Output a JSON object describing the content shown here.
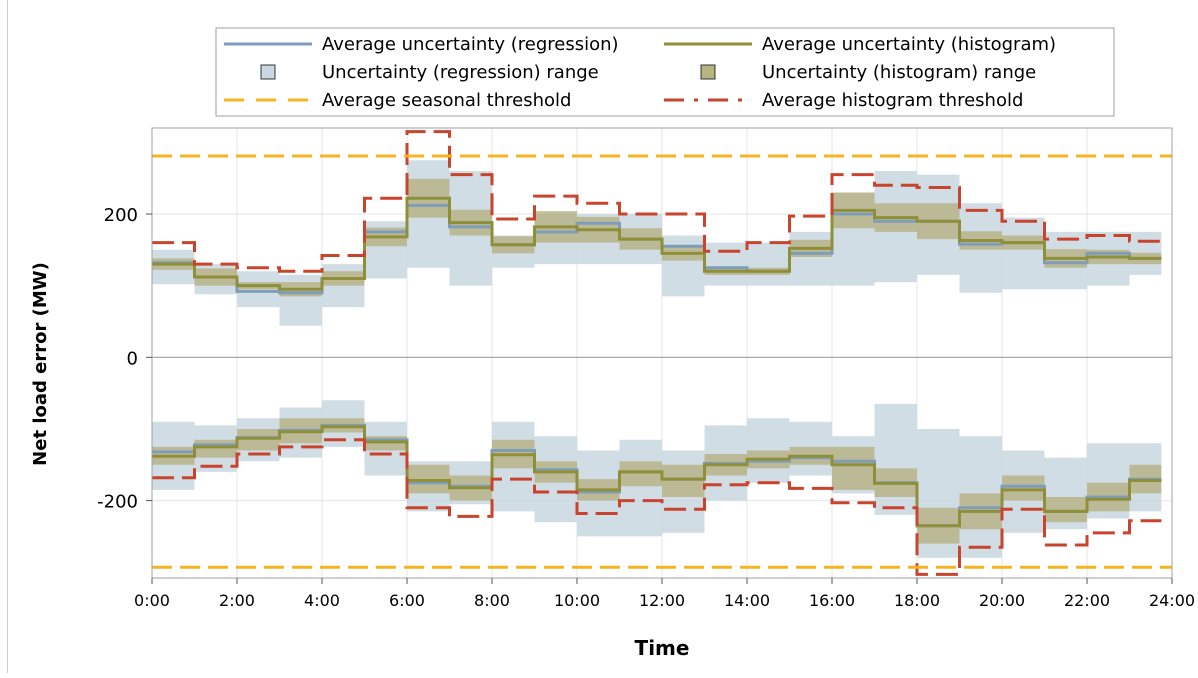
{
  "chart_data": {
    "type": "line",
    "xlabel": "Time",
    "ylabel": "Net load error (MW)",
    "xlim": [
      0,
      24
    ],
    "ylim": [
      -308,
      320
    ],
    "grid": true,
    "legend_placement": "top",
    "x_ticks": [
      "0:00",
      "2:00",
      "4:00",
      "6:00",
      "8:00",
      "10:00",
      "12:00",
      "14:00",
      "16:00",
      "18:00",
      "20:00",
      "22:00",
      "24:00"
    ],
    "y_ticks": [
      "-200",
      "0",
      "200"
    ],
    "x_tick_values": [
      0,
      2,
      4,
      6,
      8,
      10,
      12,
      14,
      16,
      18,
      20,
      22,
      24
    ],
    "y_tick_values": [
      -200,
      0,
      200
    ],
    "x_hours": [
      0,
      1,
      2,
      3,
      4,
      5,
      6,
      7,
      8,
      9,
      10,
      11,
      12,
      13,
      14,
      15,
      16,
      17,
      18,
      19,
      20,
      21,
      22,
      23
    ],
    "legend": [
      {
        "label": "Average uncertainty (regression)",
        "kind": "line",
        "color": "#7f9db9"
      },
      {
        "label": "Average uncertainty (histogram)",
        "kind": "line",
        "color": "#8f8f3a"
      },
      {
        "label": "Uncertainty (regression) range",
        "kind": "box",
        "color": "#c9d7e1"
      },
      {
        "label": "Uncertainty (histogram) range",
        "kind": "box",
        "color": "#b6b282"
      },
      {
        "label": "Average seasonal threshold",
        "kind": "dash",
        "color": "#f8b323"
      },
      {
        "label": "Average histogram threshold",
        "kind": "dashdot",
        "color": "#c8442c"
      }
    ],
    "colors": {
      "regression_line": "#7f9db9",
      "histogram_line": "#8f8f3a",
      "regression_range": "#c9d7e1",
      "histogram_range": "#b6b282",
      "seasonal_threshold": "#f8b323",
      "histogram_threshold": "#c8442c"
    },
    "seasonal_threshold": {
      "upper": 281,
      "lower": -293
    },
    "series": [
      {
        "name": "Average uncertainty (regression)",
        "group": "upper",
        "values": [
          132,
          112,
          92,
          90,
          110,
          175,
          212,
          182,
          157,
          175,
          187,
          165,
          155,
          125,
          120,
          145,
          200,
          190,
          190,
          158,
          160,
          132,
          145,
          138
        ]
      },
      {
        "name": "Average uncertainty (histogram)",
        "group": "upper",
        "values": [
          130,
          112,
          100,
          95,
          110,
          168,
          222,
          188,
          157,
          182,
          178,
          165,
          145,
          120,
          120,
          152,
          205,
          195,
          190,
          163,
          160,
          138,
          140,
          138
        ]
      },
      {
        "name": "Average uncertainty (regression)",
        "group": "lower",
        "values": [
          -132,
          -122,
          -112,
          -102,
          -95,
          -115,
          -175,
          -180,
          -130,
          -157,
          -188,
          -160,
          -170,
          -148,
          -145,
          -140,
          -145,
          -175,
          -235,
          -210,
          -180,
          -215,
          -195,
          -170
        ]
      },
      {
        "name": "Average uncertainty (histogram)",
        "group": "lower",
        "values": [
          -138,
          -125,
          -113,
          -104,
          -97,
          -118,
          -172,
          -182,
          -136,
          -160,
          -185,
          -160,
          -170,
          -150,
          -142,
          -138,
          -150,
          -176,
          -235,
          -215,
          -185,
          -215,
          -198,
          -172
        ]
      },
      {
        "name": "Average histogram threshold",
        "group": "upper",
        "values": [
          160,
          130,
          125,
          120,
          142,
          222,
          315,
          255,
          193,
          225,
          215,
          200,
          200,
          148,
          160,
          197,
          255,
          240,
          237,
          205,
          190,
          165,
          170,
          162
        ]
      },
      {
        "name": "Average histogram threshold",
        "group": "lower",
        "values": [
          -168,
          -152,
          -135,
          -125,
          -115,
          -135,
          -210,
          -222,
          -170,
          -188,
          -218,
          -200,
          -212,
          -178,
          -175,
          -183,
          -203,
          -210,
          -303,
          -265,
          -212,
          -262,
          -245,
          -228
        ]
      }
    ],
    "ranges": [
      {
        "name": "Uncertainty (regression) range",
        "group": "upper",
        "low": [
          102,
          88,
          70,
          44,
          70,
          110,
          125,
          100,
          125,
          130,
          130,
          130,
          85,
          100,
          100,
          100,
          100,
          105,
          115,
          90,
          95,
          95,
          100,
          115
        ],
        "high": [
          150,
          130,
          120,
          115,
          130,
          190,
          275,
          260,
          170,
          200,
          200,
          200,
          170,
          160,
          160,
          175,
          230,
          260,
          255,
          215,
          195,
          175,
          175,
          175
        ]
      },
      {
        "name": "Uncertainty (histogram) range",
        "group": "upper",
        "low": [
          122,
          100,
          95,
          85,
          100,
          155,
          195,
          170,
          145,
          160,
          160,
          150,
          135,
          115,
          115,
          140,
          180,
          175,
          165,
          150,
          150,
          125,
          130,
          130
        ]
      },
      {
        "name": "Uncertainty (regression) range",
        "group": "lower",
        "low": [
          -185,
          -160,
          -145,
          -140,
          -125,
          -165,
          -215,
          -205,
          -215,
          -230,
          -250,
          -250,
          -245,
          -200,
          -175,
          -165,
          -190,
          -220,
          -280,
          -280,
          -245,
          -240,
          -225,
          -215
        ],
        "high": [
          -90,
          -95,
          -85,
          -70,
          -60,
          -90,
          -145,
          -145,
          -90,
          -110,
          -130,
          -115,
          -130,
          -95,
          -85,
          -90,
          -110,
          -65,
          -100,
          -110,
          -130,
          -140,
          -120,
          -120
        ]
      },
      {
        "name": "Uncertainty (histogram) range",
        "group": "lower",
        "low": [
          -150,
          -140,
          -130,
          -120,
          -105,
          -130,
          -190,
          -200,
          -155,
          -175,
          -200,
          -180,
          -195,
          -165,
          -155,
          -150,
          -185,
          -195,
          -260,
          -240,
          -200,
          -230,
          -215,
          -190
        ],
        "high": [
          -125,
          -115,
          -100,
          -85,
          -85,
          -110,
          -150,
          -165,
          -115,
          -145,
          -170,
          -145,
          -150,
          -135,
          -130,
          -125,
          -125,
          -155,
          -210,
          -190,
          -165,
          -195,
          -175,
          -150
        ]
      }
    ]
  }
}
